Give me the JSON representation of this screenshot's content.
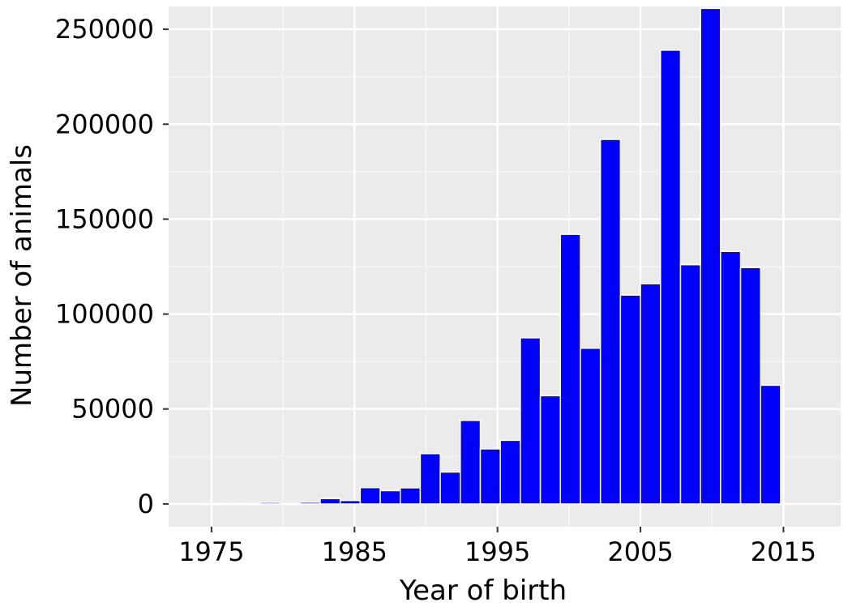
{
  "chart_data": {
    "type": "bar",
    "xlabel": "Year of birth",
    "ylabel": "Number of animals",
    "xlim": [
      1972,
      2019
    ],
    "ylim": [
      -12000,
      262000
    ],
    "grid": true,
    "x_ticks": [
      1975,
      1985,
      1995,
      2005,
      2015
    ],
    "y_ticks": [
      0,
      50000,
      100000,
      150000,
      200000,
      250000
    ],
    "x_tick_labels": [
      "1975",
      "1985",
      "1995",
      "2005",
      "2015"
    ],
    "y_tick_labels": [
      "0",
      "50000",
      "100000",
      "150000",
      "200000",
      "250000"
    ],
    "bar_width_years": 1.4,
    "bars": [
      {
        "x": 1974.9,
        "value": 0
      },
      {
        "x": 1976.3,
        "value": 0
      },
      {
        "x": 1977.7,
        "value": 0
      },
      {
        "x": 1979.1,
        "value": 800
      },
      {
        "x": 1980.5,
        "value": 0
      },
      {
        "x": 1981.9,
        "value": 900
      },
      {
        "x": 1983.3,
        "value": 2800
      },
      {
        "x": 1984.7,
        "value": 1800
      },
      {
        "x": 1986.1,
        "value": 8600
      },
      {
        "x": 1987.5,
        "value": 7000
      },
      {
        "x": 1988.9,
        "value": 8500
      },
      {
        "x": 1990.3,
        "value": 26500
      },
      {
        "x": 1991.7,
        "value": 16800
      },
      {
        "x": 1993.1,
        "value": 44000
      },
      {
        "x": 1994.5,
        "value": 29000
      },
      {
        "x": 1995.9,
        "value": 33500
      },
      {
        "x": 1997.3,
        "value": 87500
      },
      {
        "x": 1998.7,
        "value": 57000
      },
      {
        "x": 2000.1,
        "value": 142000
      },
      {
        "x": 2001.5,
        "value": 82000
      },
      {
        "x": 2002.9,
        "value": 192000
      },
      {
        "x": 2004.3,
        "value": 110000
      },
      {
        "x": 2005.7,
        "value": 116000
      },
      {
        "x": 2007.1,
        "value": 239000
      },
      {
        "x": 2008.5,
        "value": 126000
      },
      {
        "x": 2009.9,
        "value": 261000
      },
      {
        "x": 2011.3,
        "value": 133000
      },
      {
        "x": 2012.7,
        "value": 124500
      },
      {
        "x": 2014.1,
        "value": 62500
      }
    ]
  },
  "colors": {
    "bar_fill": "#0000ff",
    "bar_stroke": "#ffffff",
    "panel_background": "#ebebeb",
    "grid_major": "#ffffff",
    "grid_minor": "#f5f5f5",
    "tick": "#333333"
  }
}
